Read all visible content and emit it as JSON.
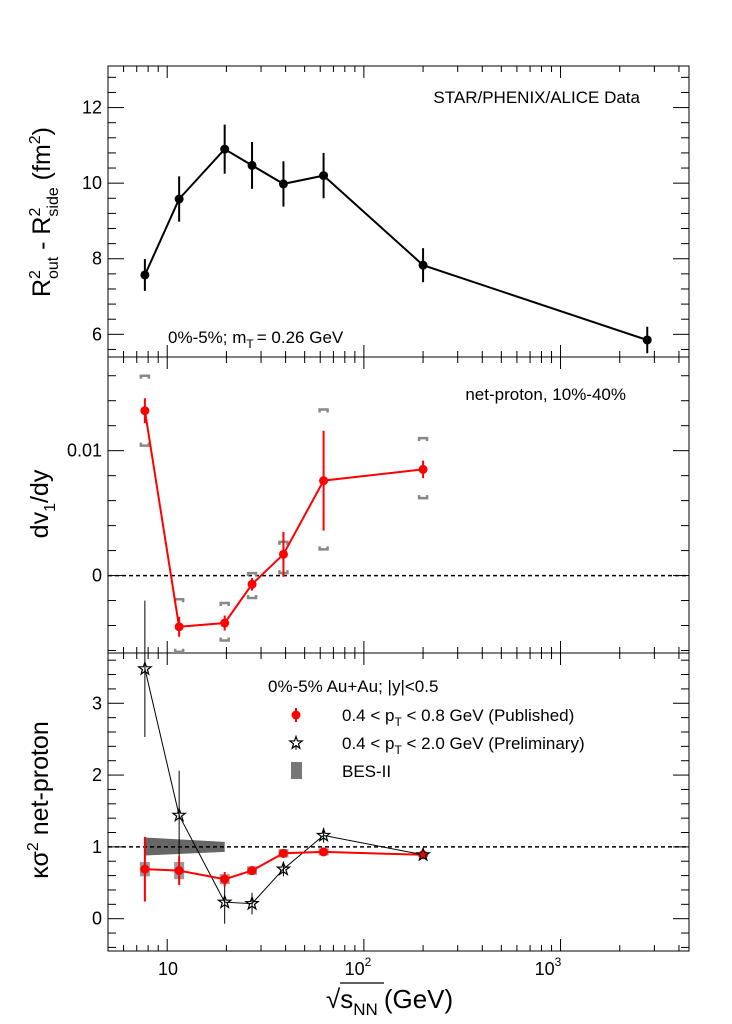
{
  "figure": {
    "xlabel_sqrt": "√",
    "xlabel_s": "s",
    "xlabel_sub": "NN",
    "xlabel_unit": "(GeV)",
    "x_tick_labels": [
      "10",
      "10",
      "10"
    ],
    "x_tick_exps": [
      "",
      "2",
      "3"
    ]
  },
  "chart_data": [
    {
      "type": "line",
      "panel": "top",
      "xscale": "log",
      "xlim": [
        5,
        4500
      ],
      "ylim": [
        5.4,
        13.1
      ],
      "yticks": [
        6,
        8,
        10,
        12
      ],
      "ylabel": "R²out - R²side (fm²)",
      "ylabel_parts": {
        "R1": "R",
        "sup1": "2",
        "sub1": "out",
        "mid": " - R",
        "sup2": "2",
        "sub2": "side",
        "unit": " (fm",
        "unitsup": "2",
        "close": ")"
      },
      "annotation": "STAR/PHENIX/ALICE Data",
      "label_prefix": "0%-5%; m",
      "label_sub": "T",
      "label_suffix": "= 0.26 GeV",
      "color": "#000000",
      "x": [
        7.7,
        11.5,
        19.6,
        27,
        39,
        62.4,
        200,
        2760
      ],
      "y": [
        7.57,
        9.58,
        10.9,
        10.47,
        9.98,
        10.2,
        7.83,
        5.85
      ],
      "err": [
        0.42,
        0.6,
        0.65,
        0.62,
        0.6,
        0.6,
        0.45,
        0.35
      ]
    },
    {
      "type": "line",
      "panel": "middle",
      "xscale": "log",
      "xlim": [
        5,
        4500
      ],
      "ylim": [
        -0.0062,
        0.0175
      ],
      "yticks": [
        0,
        0.01
      ],
      "ytick_labels": [
        "0",
        "0.01"
      ],
      "ylabel": "dv1/dy",
      "ylabel_parts": {
        "pre": "dv",
        "sub": "1",
        "post": "/dy"
      },
      "annotation": "net-proton, 10%-40%",
      "reference_line": 0,
      "color": "#ff0000",
      "x": [
        7.7,
        11.5,
        19.6,
        27,
        39,
        62.4,
        200
      ],
      "y": [
        0.0132,
        -0.0041,
        -0.0038,
        -0.0007,
        0.0017,
        0.0076,
        0.0085
      ],
      "err": [
        0.001,
        0.0008,
        0.0006,
        0.0005,
        0.0018,
        0.004,
        0.0007
      ],
      "sys_low": [
        0.0104,
        -0.0061,
        -0.0052,
        -0.0018,
        0.0002,
        0.0021,
        0.0062
      ],
      "sys_high": [
        0.016,
        -0.0019,
        -0.0022,
        0.0002,
        0.0027,
        0.0133,
        0.011
      ]
    },
    {
      "type": "line",
      "panel": "bottom",
      "xscale": "log",
      "xlim": [
        5,
        4500
      ],
      "ylim": [
        -0.45,
        3.7
      ],
      "yticks": [
        0,
        1,
        2,
        3
      ],
      "ylabel": "κσ² net-proton",
      "ylabel_parts": {
        "k": "κσ",
        "sup": "2",
        "rest": " net-proton"
      },
      "reference_line": 1,
      "legend_title": "0%-5% Au+Au; |y|<0.5",
      "series": [
        {
          "name": "0.4 < pT < 0.8 GeV (Published)",
          "legend_pre": "0.4 < p",
          "legend_sub": "T",
          "legend_post": " < 0.8 GeV (Published)",
          "marker": "circle",
          "color": "#ff0000",
          "x": [
            7.7,
            11.5,
            19.6,
            27,
            39,
            62.4,
            200
          ],
          "y": [
            0.69,
            0.67,
            0.55,
            0.67,
            0.91,
            0.93,
            0.89
          ],
          "err": [
            0.45,
            0.2,
            0.1,
            0.06,
            0.06,
            0.05,
            0.03
          ],
          "sys": [
            0.1,
            0.12,
            0.07,
            0.06,
            0.06,
            0.05,
            0.03
          ]
        },
        {
          "name": "0.4 < pT < 2.0 GeV (Preliminary)",
          "legend_pre": "0.4 < p",
          "legend_sub": "T",
          "legend_post": " < 2.0 GeV (Preliminary)",
          "marker": "star",
          "color": "#000000",
          "x": [
            7.7,
            11.5,
            19.6,
            27,
            39,
            62.4,
            200
          ],
          "y": [
            3.48,
            1.44,
            0.23,
            0.21,
            0.69,
            1.16,
            0.89
          ],
          "err": [
            0.95,
            0.62,
            0.3,
            0.15,
            0.1,
            0.1,
            0.04
          ]
        },
        {
          "name": "BES-II",
          "marker": "band",
          "color": "#666666",
          "x": [
            7.7,
            19.6
          ],
          "y_low": [
            0.88,
            0.93
          ],
          "y_high": [
            1.13,
            1.07
          ]
        }
      ]
    }
  ]
}
